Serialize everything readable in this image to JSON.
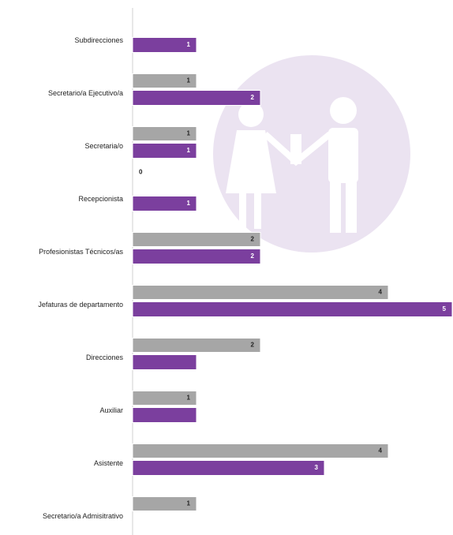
{
  "chart_data": {
    "type": "bar",
    "orientation": "horizontal",
    "categories": [
      "Subdirecciones",
      "Secretario/a Ejecutivo/a",
      "Secretaria/o",
      "Recepcionista",
      "Profesionistas Técnicos/as",
      "Jefaturas de departamento",
      "Direcciones",
      "Auxiliar",
      "Asistente",
      "Secretario/a Admisitrativo"
    ],
    "series": [
      {
        "color": "#a6a6a6",
        "values": [
          null,
          1,
          1,
          0,
          2,
          4,
          2,
          1,
          4,
          1
        ]
      },
      {
        "color": "#7b3f9e",
        "values": [
          1,
          2,
          1,
          1,
          2,
          5,
          1,
          1,
          3,
          null
        ],
        "value_labels": [
          "1",
          "2",
          "1",
          "1",
          "2",
          "5",
          null,
          null,
          "3",
          null
        ]
      }
    ],
    "xlim": [
      0,
      5
    ]
  }
}
